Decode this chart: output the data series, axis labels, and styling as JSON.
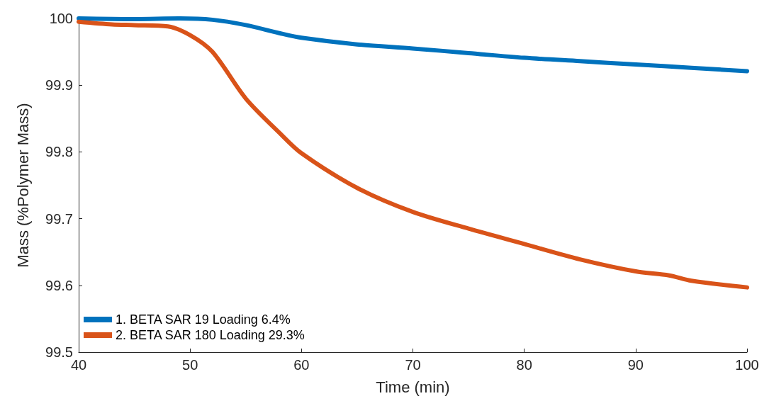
{
  "chart_data": {
    "type": "line",
    "xlabel": "Time (min)",
    "ylabel": "Mass (%Polymer Mass)",
    "xlim": [
      40,
      100
    ],
    "xticks": [
      40,
      50,
      60,
      70,
      80,
      90,
      100
    ],
    "ylim": [
      99.5,
      100
    ],
    "yticks": [
      99.5,
      99.6,
      99.7,
      99.8,
      99.9,
      100
    ],
    "grid": false,
    "legend": "bottom left",
    "marker": "none",
    "line_style": "solid",
    "series": [
      {
        "name": "1. BETA SAR 19 Loading 6.4%",
        "color": "#0072bd",
        "x": [
          40,
          45,
          49,
          52,
          55,
          58,
          60,
          65,
          70,
          75,
          80,
          85,
          90,
          95,
          100
        ],
        "values": [
          100,
          99.999,
          100,
          99.998,
          99.99,
          99.978,
          99.971,
          99.961,
          99.955,
          99.948,
          99.941,
          99.936,
          99.931,
          99.926,
          99.921
        ]
      },
      {
        "name": "2. BETA SAR 180 Loading 29.3%",
        "color": "#d95319",
        "x": [
          40,
          43,
          45,
          48,
          50,
          52,
          55,
          58,
          60,
          65,
          70,
          75,
          80,
          85,
          90,
          93,
          95,
          100
        ],
        "values": [
          99.995,
          99.991,
          99.99,
          99.988,
          99.975,
          99.95,
          99.88,
          99.829,
          99.798,
          99.746,
          99.71,
          99.685,
          99.662,
          99.639,
          99.621,
          99.615,
          99.607,
          99.597
        ]
      }
    ]
  }
}
